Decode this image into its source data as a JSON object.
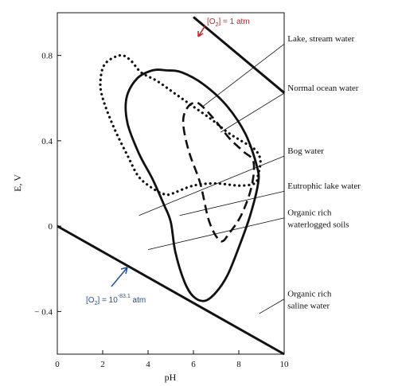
{
  "chart_data": {
    "type": "line",
    "title": "",
    "xlabel": "pH",
    "ylabel": "E, V",
    "xlim": [
      0,
      10
    ],
    "ylim": [
      -0.6,
      1.0
    ],
    "x_ticks": [
      0,
      2,
      4,
      6,
      8,
      10
    ],
    "x_tick_labels": [
      "0",
      "2",
      "4",
      "6",
      "8",
      "10"
    ],
    "y_ticks": [
      -0.4,
      0,
      0.4,
      0.8
    ],
    "y_tick_labels": [
      "− 0.4",
      "0",
      "0.4",
      "0.8"
    ],
    "grid": false,
    "colors": {
      "upper_label": "#cc1f1f",
      "lower_label": "#1f4fa0",
      "lines": "#111111"
    },
    "boundaries": [
      {
        "id": "upper",
        "label_prefix": "[O",
        "label_sub": "2",
        "label_mid": "] = 1 atm",
        "label_sup": "",
        "label_suffix": "",
        "points": [
          [
            6.0,
            0.98
          ],
          [
            10.0,
            0.625
          ]
        ]
      },
      {
        "id": "lower",
        "label_prefix": "[O",
        "label_sub": "2",
        "label_mid": "] = 10",
        "label_sup": "-83.1",
        "label_suffix": " atm",
        "points": [
          [
            0.0,
            0.0
          ],
          [
            10.0,
            -0.6
          ]
        ]
      }
    ],
    "series": [
      {
        "id": "dotted",
        "style": "dotted",
        "points": [
          [
            2.75,
            0.8
          ],
          [
            3.2,
            0.78
          ],
          [
            3.7,
            0.72
          ],
          [
            4.4,
            0.68
          ],
          [
            5.2,
            0.62
          ],
          [
            6.0,
            0.56
          ],
          [
            6.8,
            0.5
          ],
          [
            7.5,
            0.44
          ],
          [
            8.1,
            0.4
          ],
          [
            8.7,
            0.36
          ],
          [
            8.95,
            0.31
          ],
          [
            8.85,
            0.24
          ],
          [
            8.7,
            0.2
          ],
          [
            8.0,
            0.19
          ],
          [
            7.0,
            0.2
          ],
          [
            6.0,
            0.19
          ],
          [
            5.0,
            0.15
          ],
          [
            4.7,
            0.15
          ],
          [
            4.3,
            0.17
          ],
          [
            3.6,
            0.23
          ],
          [
            3.1,
            0.33
          ],
          [
            2.5,
            0.46
          ],
          [
            2.0,
            0.6
          ],
          [
            1.9,
            0.68
          ],
          [
            2.1,
            0.76
          ],
          [
            2.75,
            0.8
          ]
        ]
      },
      {
        "id": "solid",
        "style": "solid",
        "points": [
          [
            4.8,
            0.73
          ],
          [
            5.5,
            0.72
          ],
          [
            6.5,
            0.66
          ],
          [
            7.5,
            0.56
          ],
          [
            8.3,
            0.43
          ],
          [
            8.8,
            0.28
          ],
          [
            8.85,
            0.2
          ],
          [
            8.5,
            0.05
          ],
          [
            8.0,
            -0.1
          ],
          [
            7.5,
            -0.23
          ],
          [
            7.0,
            -0.31
          ],
          [
            6.5,
            -0.35
          ],
          [
            6.0,
            -0.33
          ],
          [
            5.6,
            -0.26
          ],
          [
            5.2,
            -0.12
          ],
          [
            5.0,
            0.02
          ],
          [
            4.7,
            0.1
          ],
          [
            4.2,
            0.22
          ],
          [
            3.6,
            0.34
          ],
          [
            3.1,
            0.48
          ],
          [
            3.05,
            0.6
          ],
          [
            3.5,
            0.69
          ],
          [
            4.2,
            0.73
          ],
          [
            4.8,
            0.73
          ]
        ]
      },
      {
        "id": "dashed",
        "style": "dashed",
        "points": [
          [
            5.7,
            0.55
          ],
          [
            6.1,
            0.58
          ],
          [
            6.5,
            0.55
          ],
          [
            7.0,
            0.49
          ],
          [
            7.6,
            0.41
          ],
          [
            8.2,
            0.35
          ],
          [
            8.65,
            0.3
          ],
          [
            8.55,
            0.18
          ],
          [
            8.1,
            0.05
          ],
          [
            7.6,
            -0.03
          ],
          [
            7.2,
            -0.07
          ],
          [
            6.7,
            0.02
          ],
          [
            6.3,
            0.2
          ],
          [
            5.8,
            0.35
          ],
          [
            5.55,
            0.48
          ],
          [
            5.7,
            0.55
          ]
        ]
      }
    ],
    "annotations": [
      {
        "id": "lake",
        "lines": [
          "Lake, stream water"
        ],
        "from": [
          10.15,
          0.865
        ],
        "to": [
          6.4,
          0.56
        ]
      },
      {
        "id": "ocean",
        "lines": [
          "Normal ocean water"
        ],
        "from": [
          10.15,
          0.635
        ],
        "to": [
          7.2,
          0.44
        ]
      },
      {
        "id": "bog",
        "lines": [
          "Bog water"
        ],
        "from": [
          10.15,
          0.34
        ],
        "to": [
          3.6,
          0.05
        ]
      },
      {
        "id": "eutrophic",
        "lines": [
          "Eutrophic lake water"
        ],
        "from": [
          10.15,
          0.175
        ],
        "to": [
          5.4,
          0.05
        ]
      },
      {
        "id": "organic_soils",
        "lines": [
          "Organic rich",
          "waterlogged soils"
        ],
        "from": [
          10.15,
          0.05
        ],
        "to": [
          4.0,
          -0.11
        ]
      },
      {
        "id": "saline",
        "lines": [
          "Organic rich",
          "saline water"
        ],
        "from": [
          10.15,
          -0.33
        ],
        "to": [
          8.9,
          -0.41
        ]
      }
    ]
  }
}
